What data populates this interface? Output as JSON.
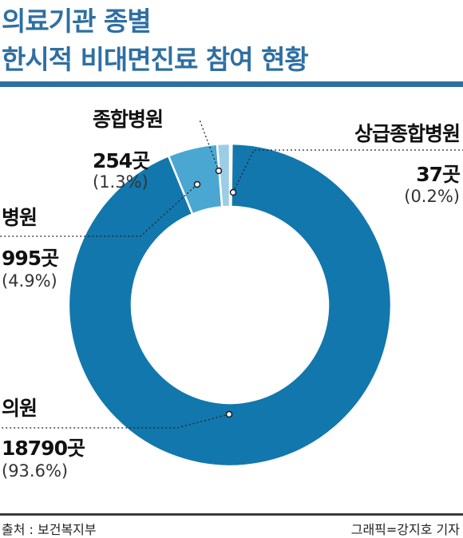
{
  "header": {
    "title_line1": "의료기관 종별",
    "title_line2": "한시적 비대면진료 참여 현황"
  },
  "footer": {
    "source": "출처 : 보건복지부",
    "credit": "그래픽=강지호 기자"
  },
  "colors": {
    "accent": "#2e6fa3",
    "slice_main": "#1277ac",
    "slice_second": "#4aa7d2",
    "slice_third": "#9ccde6",
    "slice_fourth": "#d9e5ec"
  },
  "chart_data": {
    "type": "pie",
    "donut": true,
    "title": "의료기관 종별 한시적 비대면진료 참여 현황",
    "unit": "곳",
    "slices": [
      {
        "label": "상급종합병원",
        "value": 37,
        "value_text": "37곳",
        "percent_text": "(0.2%)"
      },
      {
        "label": "의원",
        "value": 18790,
        "value_text": "18790곳",
        "percent_text": "(93.6%)"
      },
      {
        "label": "병원",
        "value": 995,
        "value_text": "995곳",
        "percent_text": "(4.9%)"
      },
      {
        "label": "종합병원",
        "value": 254,
        "value_text": "254곳",
        "percent_text": "(1.3%)"
      }
    ]
  }
}
